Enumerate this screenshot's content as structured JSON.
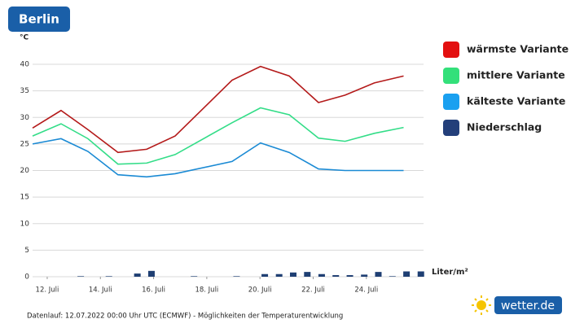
{
  "title": "Berlin",
  "footer": "Datenlauf: 12.07.2022 00:00 Uhr UTC (ECMWF) - Möglichkeiten der Temperaturentwicklung",
  "logo": "wetter.de",
  "chart_data": {
    "type": "line",
    "y_unit": "°C",
    "precip_unit": "Liter/m²",
    "xlim": [
      11.45,
      26.15
    ],
    "ylim": [
      0,
      40
    ],
    "yticks": [
      0,
      5,
      10,
      15,
      20,
      25,
      30,
      35,
      40
    ],
    "xticks": [
      {
        "value": 12,
        "label": "12. Juli"
      },
      {
        "value": 14,
        "label": "14. Juli"
      },
      {
        "value": 16,
        "label": "16. Juli"
      },
      {
        "value": 18,
        "label": "18. Juli"
      },
      {
        "value": 20,
        "label": "20. Juli"
      },
      {
        "value": 22,
        "label": "22. Juli"
      },
      {
        "value": 24,
        "label": "24. Juli"
      }
    ],
    "grid": true,
    "legend": "right",
    "series": [
      {
        "name": "wärmste Variante",
        "type": "line",
        "color": "#b41a1a",
        "legend_color": "#e31010",
        "x": [
          11.45,
          12.52,
          13.53,
          14.66,
          15.74,
          16.81,
          18.95,
          20.02,
          21.1,
          22.2,
          23.2,
          24.3,
          25.4
        ],
        "values": [
          28,
          31.3,
          27.7,
          23.4,
          24,
          26.5,
          37,
          39.6,
          37.8,
          32.8,
          34.2,
          36.5,
          37.8
        ]
      },
      {
        "name": "mittlere Variante",
        "type": "line",
        "color": "#33dd88",
        "legend_color": "#33e07a",
        "x": [
          11.45,
          12.52,
          13.53,
          14.66,
          15.74,
          16.81,
          18.95,
          20.02,
          21.1,
          22.2,
          23.2,
          24.3,
          25.4
        ],
        "values": [
          26.5,
          28.8,
          26,
          21.2,
          21.4,
          23,
          29,
          31.8,
          30.5,
          26.1,
          25.5,
          27,
          28.1
        ]
      },
      {
        "name": "kälteste Variante",
        "type": "line",
        "color": "#1a8ad4",
        "legend_color": "#1aa0f0",
        "x": [
          11.45,
          12.52,
          13.53,
          14.66,
          15.74,
          16.81,
          18.95,
          20.02,
          21.1,
          22.2,
          23.2,
          24.3,
          25.4
        ],
        "values": [
          25,
          26,
          23.6,
          19.2,
          18.8,
          19.4,
          21.7,
          25.2,
          23.4,
          20.3,
          20,
          20,
          20
        ]
      },
      {
        "name": "Niederschlag",
        "type": "bar",
        "color": "#1f3f73",
        "legend_color": "#233f7a",
        "x": [
          11.66,
          12.19,
          12.72,
          13.26,
          13.79,
          14.32,
          14.86,
          15.39,
          15.92,
          16.45,
          16.99,
          17.52,
          18.05,
          18.59,
          19.12,
          19.65,
          20.18,
          20.72,
          21.25,
          21.78,
          22.32,
          22.85,
          23.38,
          23.92,
          24.45,
          24.98,
          25.51,
          26.05
        ],
        "values": [
          0,
          0,
          0,
          0.1,
          0,
          0.1,
          0,
          0.6,
          1.1,
          0,
          0,
          0.1,
          0,
          0,
          0.1,
          0,
          0.5,
          0.5,
          0.8,
          0.9,
          0.5,
          0.3,
          0.3,
          0.4,
          0.9,
          0.1,
          1.0,
          1.0
        ]
      }
    ]
  }
}
